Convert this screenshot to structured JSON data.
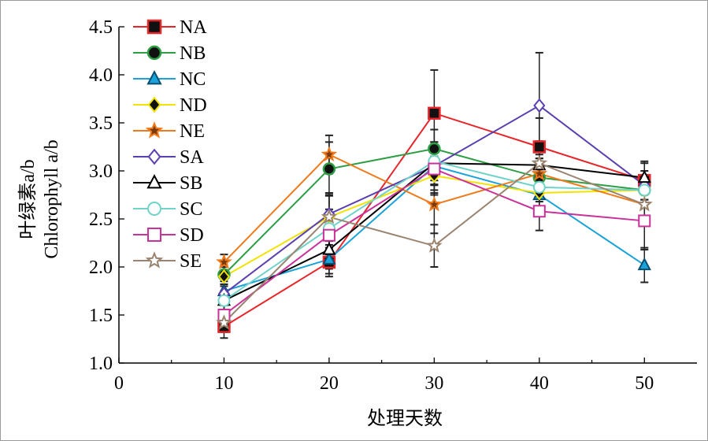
{
  "chart_data": {
    "type": "line",
    "xlabel": "处理天数",
    "ylabel_cn": "叶绿素a/b",
    "ylabel_en": "Chlorophyll a/b",
    "xlim": [
      0,
      55
    ],
    "ylim": [
      1.0,
      4.5
    ],
    "xticks": [
      "0",
      "10",
      "20",
      "30",
      "40",
      "50"
    ],
    "yticks": [
      "1.0",
      "1.5",
      "2.0",
      "2.5",
      "3.0",
      "3.5",
      "4.0",
      "4.5"
    ],
    "x": [
      10,
      20,
      30,
      40,
      50
    ],
    "series": [
      {
        "name": "NA",
        "color": "#e8262a",
        "marker": "square",
        "filled": true,
        "values": [
          1.38,
          2.05,
          3.6,
          3.25,
          2.9
        ],
        "err": [
          0.12,
          0.15,
          0.45,
          0.3,
          0.2
        ]
      },
      {
        "name": "NB",
        "color": "#2e9e44",
        "marker": "circle",
        "filled": true,
        "values": [
          1.92,
          3.02,
          3.23,
          2.93,
          2.8
        ],
        "err": [
          0.1,
          0.28,
          0.2,
          0.2,
          0.15
        ]
      },
      {
        "name": "NC",
        "color": "#1aa3d9",
        "marker": "triangle",
        "filled": true,
        "values": [
          1.75,
          2.08,
          3.05,
          2.75,
          2.02
        ],
        "err": [
          0.1,
          0.15,
          0.2,
          0.2,
          0.18
        ]
      },
      {
        "name": "ND",
        "color": "#f2e200",
        "marker": "diamond",
        "filled": true,
        "values": [
          1.9,
          2.52,
          2.95,
          2.77,
          2.8
        ],
        "err": [
          0.1,
          0.25,
          0.2,
          0.15,
          0.15
        ]
      },
      {
        "name": "NE",
        "color": "#f07a1a",
        "marker": "star",
        "filled": true,
        "values": [
          2.05,
          3.17,
          2.65,
          2.97,
          2.65
        ],
        "err": [
          0.08,
          0.2,
          0.3,
          0.2,
          0.15
        ]
      },
      {
        "name": "SA",
        "color": "#5b3fb0",
        "marker": "diamond",
        "filled": false,
        "values": [
          1.72,
          2.55,
          3.05,
          3.68,
          2.85
        ],
        "err": [
          0.1,
          0.2,
          0.25,
          0.55,
          0.15
        ]
      },
      {
        "name": "SB",
        "color": "#000000",
        "marker": "triangle",
        "filled": false,
        "values": [
          1.65,
          2.18,
          3.08,
          3.06,
          2.93
        ],
        "err": [
          0.1,
          0.2,
          0.22,
          0.25,
          0.15
        ]
      },
      {
        "name": "SC",
        "color": "#6fd3c9",
        "marker": "circle",
        "filled": false,
        "values": [
          1.65,
          2.4,
          3.1,
          2.83,
          2.8
        ],
        "err": [
          0.1,
          0.2,
          0.2,
          0.15,
          0.1
        ]
      },
      {
        "name": "SD",
        "color": "#c8329a",
        "marker": "square",
        "filled": false,
        "values": [
          1.5,
          2.33,
          3.02,
          2.58,
          2.48
        ],
        "err": [
          0.1,
          0.2,
          0.25,
          0.2,
          0.3
        ]
      },
      {
        "name": "SE",
        "color": "#9a8470",
        "marker": "star",
        "filled": false,
        "values": [
          1.42,
          2.52,
          2.22,
          3.08,
          2.65
        ],
        "err": [
          0.1,
          0.25,
          0.22,
          0.2,
          0.15
        ]
      }
    ],
    "grid": false,
    "legend": "top-left"
  }
}
